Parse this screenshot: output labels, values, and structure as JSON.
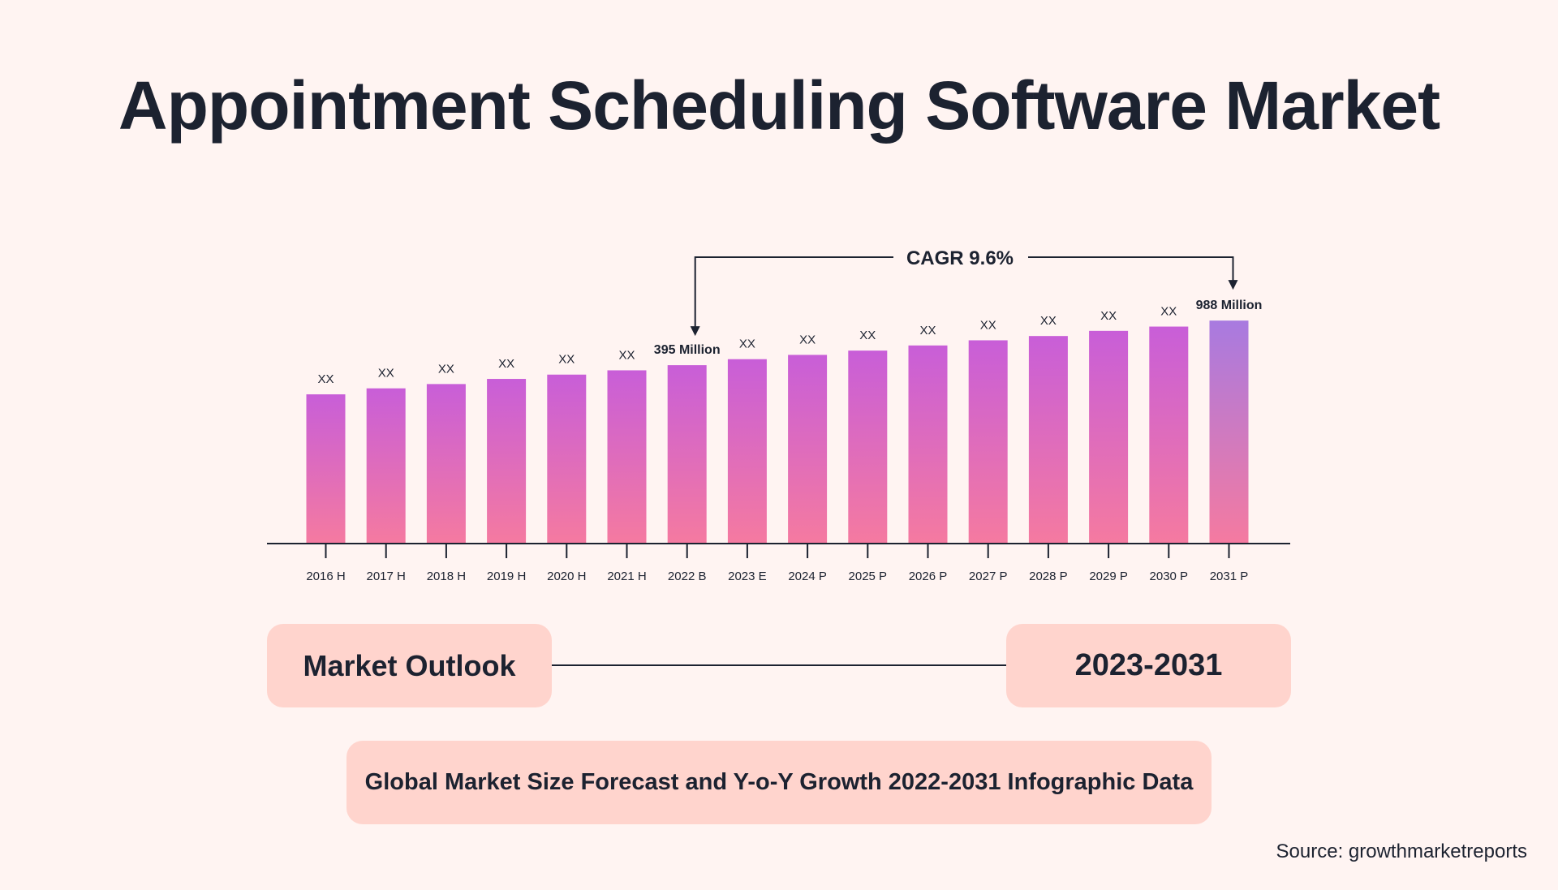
{
  "title": "Appointment Scheduling Software Market",
  "chart_data": {
    "type": "bar",
    "categories": [
      "2016 H",
      "2017 H",
      "2018 H",
      "2019 H",
      "2020 H",
      "2021 H",
      "2022 B",
      "2023 E",
      "2024 P",
      "2025 P",
      "2026 P",
      "2027 P",
      "2028 P",
      "2029 P",
      "2030 P",
      "2031 P"
    ],
    "values": [
      174,
      181,
      186,
      192,
      197,
      202,
      208,
      215,
      220,
      225,
      231,
      237,
      242,
      248,
      253,
      260
    ],
    "value_units": "relative (bar height, data units)",
    "data_labels": [
      "XX",
      "XX",
      "XX",
      "XX",
      "XX",
      "XX",
      "395 Million",
      "XX",
      "XX",
      "XX",
      "XX",
      "XX",
      "XX",
      "XX",
      "XX",
      "988 Million"
    ],
    "highlighted": [
      6,
      15
    ],
    "annotation": {
      "text": "CAGR 9.6%",
      "from_index": 6,
      "to_index": 15
    },
    "colors": {
      "bar_top": "#c85ed8",
      "bar_bottom": "#f57aa0",
      "bar_top_last": "#a87ae0",
      "axis": "#1c2230"
    },
    "ylim": [
      0,
      280
    ]
  },
  "outlook": {
    "label": "Market Outlook",
    "period": "2023-2031"
  },
  "subtitle": "Global Market Size Forecast and Y-o-Y Growth 2022-2031 Infographic Data",
  "source": "Source: growthmarketreports",
  "colors": {
    "background": "#fff4f2",
    "pill": "#ffd4cd",
    "text": "#1c2230"
  }
}
